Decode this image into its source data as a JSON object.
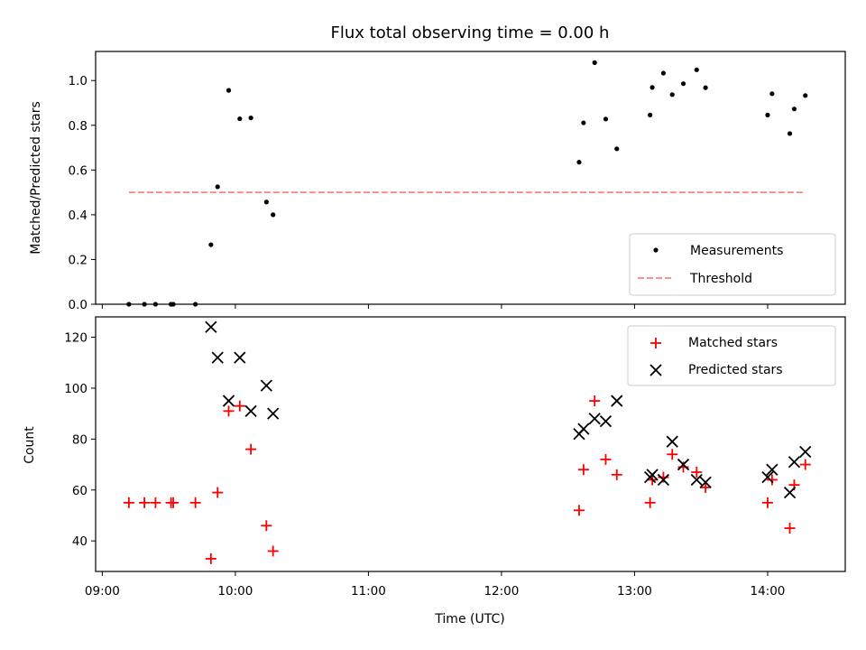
{
  "chart_data": [
    {
      "type": "scatter",
      "title": "Flux total observing time = 0.00 h",
      "xlabel": "",
      "ylabel": "Matched/Predicted stars",
      "ylim": [
        0,
        1.13
      ],
      "yticks": [
        "0.0",
        "0.2",
        "0.4",
        "0.6",
        "0.8",
        "1.0"
      ],
      "grid": false,
      "legend_placement": "bottom-right",
      "series": [
        {
          "name": "Measurements",
          "marker": "dot",
          "color": "#000000",
          "points": [
            [
              "09:12",
              0.0
            ],
            [
              "09:19",
              0.0
            ],
            [
              "09:24",
              0.0
            ],
            [
              "09:31",
              0.0
            ],
            [
              "09:32",
              0.0
            ],
            [
              "09:42",
              0.0
            ],
            [
              "09:49",
              0.266
            ],
            [
              "09:52",
              0.525
            ],
            [
              "09:57",
              0.956
            ],
            [
              "10:02",
              0.829
            ],
            [
              "10:07",
              0.833
            ],
            [
              "10:14",
              0.457
            ],
            [
              "10:17",
              0.4
            ],
            [
              "12:35",
              0.635
            ],
            [
              "12:37",
              0.811
            ],
            [
              "12:42",
              1.08
            ],
            [
              "12:47",
              0.828
            ],
            [
              "12:52",
              0.695
            ],
            [
              "13:07",
              0.846
            ],
            [
              "13:08",
              0.969
            ],
            [
              "13:13",
              1.033
            ],
            [
              "13:17",
              0.937
            ],
            [
              "13:22",
              0.986
            ],
            [
              "13:28",
              1.048
            ],
            [
              "13:32",
              0.968
            ],
            [
              "14:00",
              0.846
            ],
            [
              "14:02",
              0.941
            ],
            [
              "14:10",
              0.763
            ],
            [
              "14:12",
              0.873
            ],
            [
              "14:17",
              0.933
            ]
          ]
        },
        {
          "name": "Threshold",
          "style": "dashed-line",
          "color": "#ff8080",
          "points": [
            [
              "09:12",
              0.5
            ],
            [
              "14:17",
              0.5
            ]
          ]
        }
      ]
    },
    {
      "type": "scatter",
      "title": "",
      "xlabel": "Time (UTC)",
      "ylabel": "Count",
      "ylim": [
        28,
        128
      ],
      "yticks": [
        "40",
        "60",
        "80",
        "100",
        "120"
      ],
      "xlim": [
        "08:57",
        "14:35"
      ],
      "xticks": [
        "09:00",
        "10:00",
        "11:00",
        "12:00",
        "13:00",
        "14:00"
      ],
      "grid": false,
      "legend_placement": "top-right",
      "series": [
        {
          "name": "Matched stars",
          "marker": "plus",
          "color": "#ff0000",
          "points": [
            [
              "09:12",
              55
            ],
            [
              "09:19",
              55
            ],
            [
              "09:24",
              55
            ],
            [
              "09:31",
              55
            ],
            [
              "09:32",
              55
            ],
            [
              "09:42",
              55
            ],
            [
              "09:49",
              33
            ],
            [
              "09:52",
              59
            ],
            [
              "09:57",
              91
            ],
            [
              "10:02",
              93
            ],
            [
              "10:07",
              76
            ],
            [
              "10:14",
              46
            ],
            [
              "10:17",
              36
            ],
            [
              "12:35",
              52
            ],
            [
              "12:37",
              68
            ],
            [
              "12:42",
              95
            ],
            [
              "12:47",
              72
            ],
            [
              "12:52",
              66
            ],
            [
              "13:07",
              55
            ],
            [
              "13:08",
              64
            ],
            [
              "13:13",
              65
            ],
            [
              "13:17",
              74
            ],
            [
              "13:22",
              69
            ],
            [
              "13:28",
              67
            ],
            [
              "13:32",
              61
            ],
            [
              "14:00",
              55
            ],
            [
              "14:02",
              64
            ],
            [
              "14:10",
              45
            ],
            [
              "14:12",
              62
            ],
            [
              "14:17",
              70
            ]
          ]
        },
        {
          "name": "Predicted stars",
          "marker": "x",
          "color": "#000000",
          "points": [
            [
              "09:49",
              124
            ],
            [
              "09:52",
              112
            ],
            [
              "09:57",
              95
            ],
            [
              "10:02",
              112
            ],
            [
              "10:07",
              91
            ],
            [
              "10:14",
              101
            ],
            [
              "10:17",
              90
            ],
            [
              "12:35",
              82
            ],
            [
              "12:37",
              84
            ],
            [
              "12:42",
              88
            ],
            [
              "12:47",
              87
            ],
            [
              "12:52",
              95
            ],
            [
              "13:07",
              65
            ],
            [
              "13:08",
              66
            ],
            [
              "13:13",
              64
            ],
            [
              "13:17",
              79
            ],
            [
              "13:22",
              70
            ],
            [
              "13:28",
              64
            ],
            [
              "13:32",
              63
            ],
            [
              "14:00",
              65
            ],
            [
              "14:02",
              68
            ],
            [
              "14:10",
              59
            ],
            [
              "14:12",
              71
            ],
            [
              "14:17",
              75
            ]
          ]
        }
      ]
    }
  ]
}
